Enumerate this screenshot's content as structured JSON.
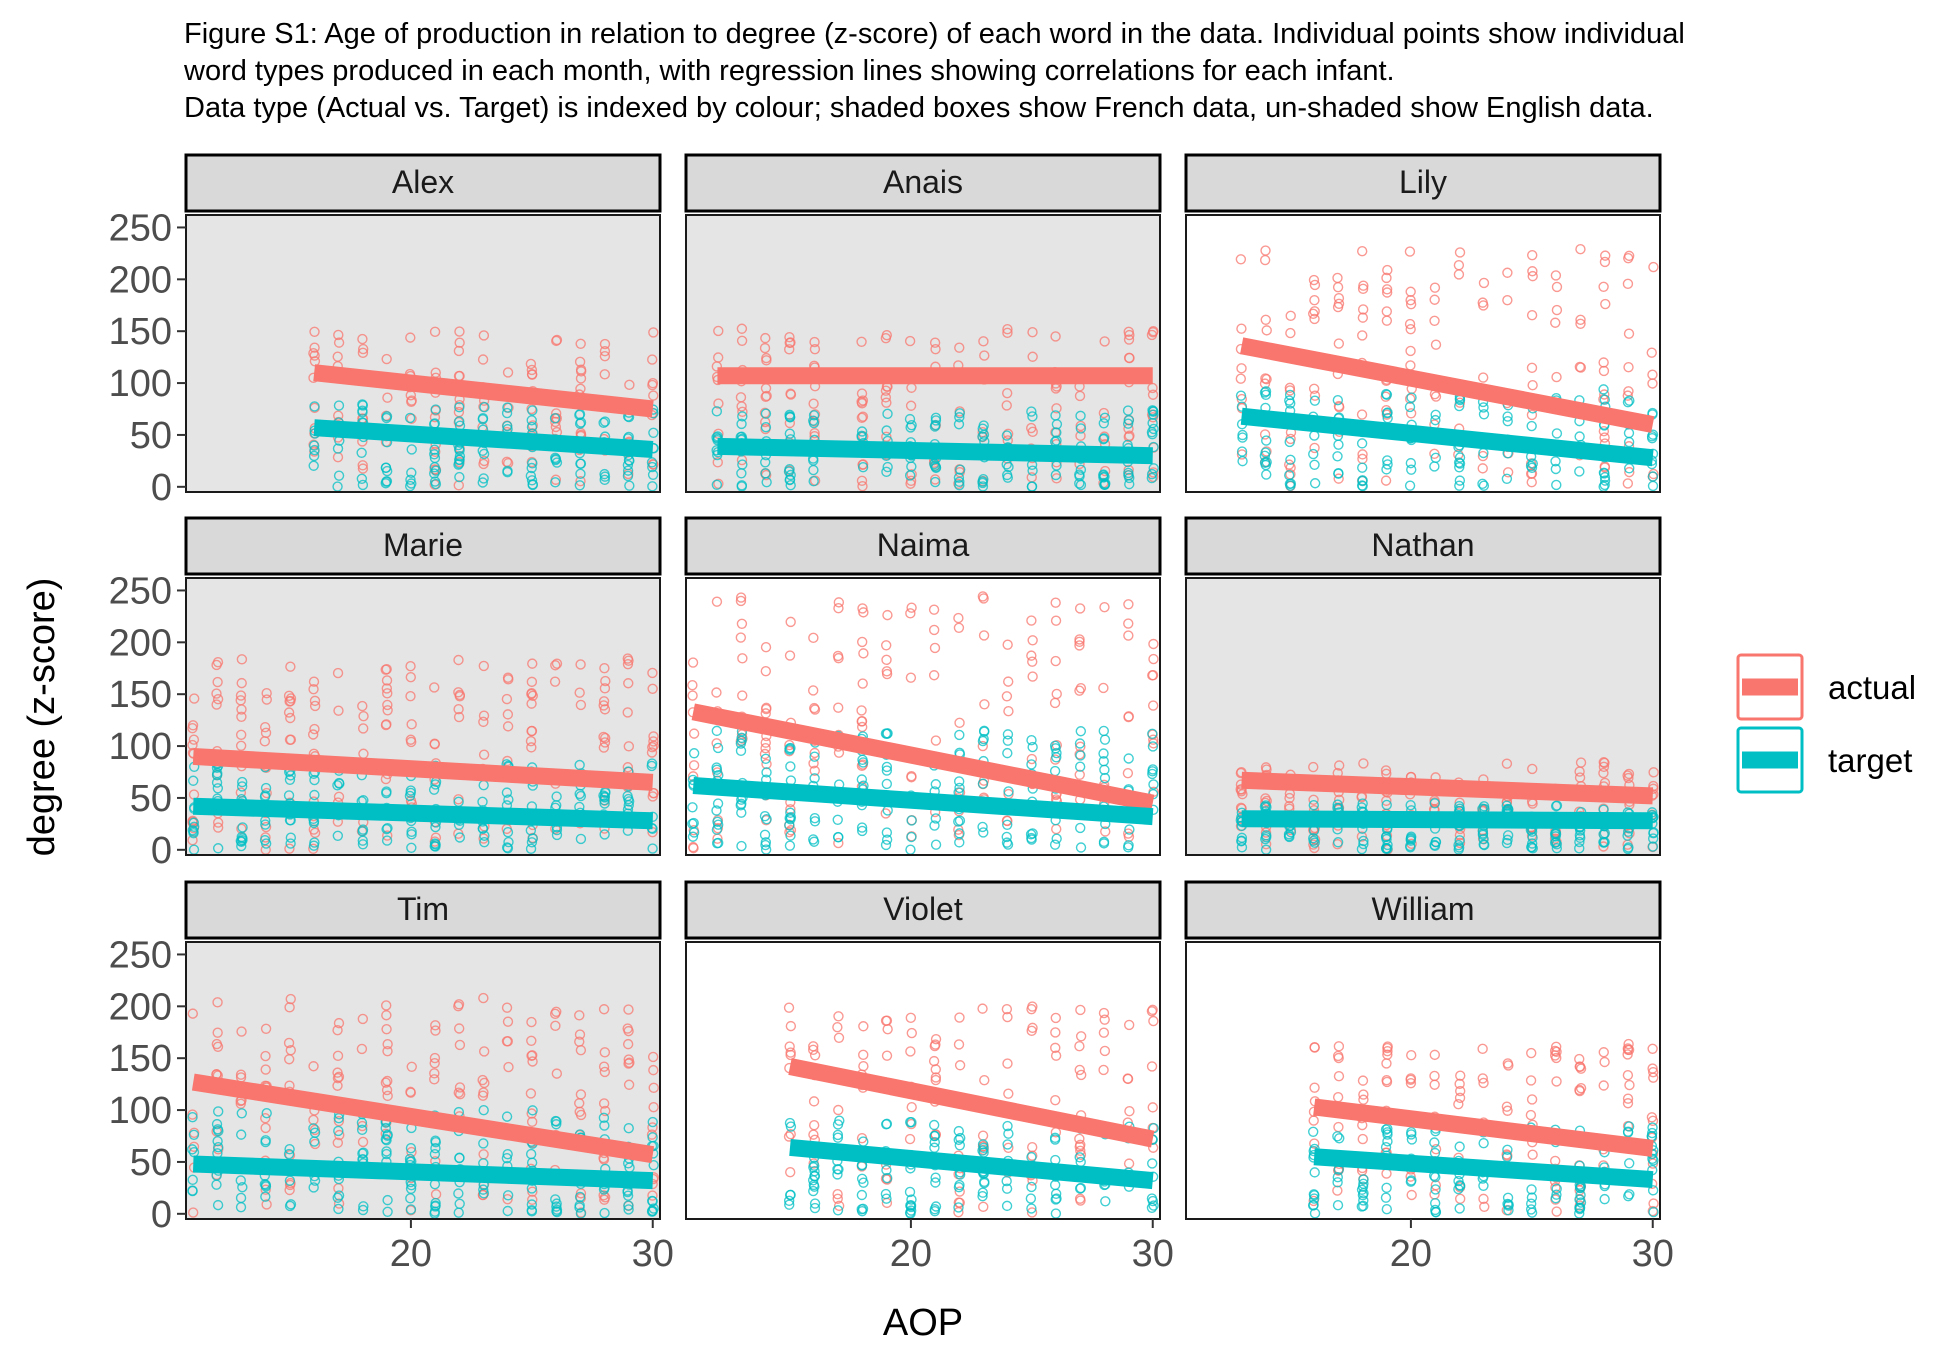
{
  "caption": {
    "lines": [
      "Figure S1: Age of production in relation to degree (z-score) of each word in the data. Individual points show individual",
      "word types produced in each month, with regression lines showing correlations for each infant.",
      "Data type (Actual vs. Target) is indexed by colour; shaded boxes show French data, un-shaded show English data."
    ]
  },
  "colors": {
    "actual": "#F8766D",
    "target": "#00BFC4",
    "french_panel_bg": "#E5E5E5",
    "english_panel_bg": "#FFFFFF",
    "strip_bg": "#D9D9D9"
  },
  "chart_data": {
    "type": "scatter",
    "facet_layout": "3x3",
    "xlabel": "AOP",
    "ylabel": "degree (z-score)",
    "xlim": [
      10.7,
      30.3
    ],
    "ylim": [
      -5,
      262
    ],
    "x_ticks": [
      20,
      30
    ],
    "y_ticks": [
      0,
      50,
      100,
      150,
      200,
      250
    ],
    "grid": false,
    "legend": {
      "position": "right",
      "entries": [
        {
          "name": "actual",
          "color": "#F8766D"
        },
        {
          "name": "target",
          "color": "#00BFC4"
        }
      ]
    },
    "panels": [
      {
        "name": "Alex",
        "language": "French",
        "months": [
          16,
          17,
          18,
          19,
          20,
          21,
          22,
          23,
          24,
          25,
          26,
          27,
          28,
          29,
          30
        ],
        "actual": {
          "range": [
            0,
            150
          ],
          "line": [
            [
              16,
              110
            ],
            [
              30,
              75
            ]
          ]
        },
        "target": {
          "range": [
            0,
            80
          ],
          "line": [
            [
              16,
              57
            ],
            [
              30,
              36
            ]
          ]
        }
      },
      {
        "name": "Anais",
        "language": "French",
        "months": [
          12,
          13,
          14,
          15,
          16,
          18,
          19,
          20,
          21,
          22,
          23,
          24,
          25,
          26,
          27,
          28,
          29,
          30
        ],
        "actual": {
          "range": [
            0,
            155
          ],
          "line": [
            [
              12,
              107
            ],
            [
              30,
              107
            ]
          ]
        },
        "target": {
          "range": [
            0,
            75
          ],
          "line": [
            [
              12,
              39
            ],
            [
              30,
              30
            ]
          ]
        }
      },
      {
        "name": "Lily",
        "language": "English",
        "months": [
          13,
          14,
          15,
          16,
          17,
          18,
          19,
          20,
          21,
          22,
          23,
          24,
          25,
          26,
          27,
          28,
          29,
          30
        ],
        "actual": {
          "range": [
            0,
            230
          ],
          "line": [
            [
              13,
              136
            ],
            [
              30,
              60
            ]
          ]
        },
        "target": {
          "range": [
            0,
            95
          ],
          "line": [
            [
              13,
              68
            ],
            [
              30,
              28
            ]
          ]
        }
      },
      {
        "name": "Marie",
        "language": "French",
        "months": [
          11,
          12,
          13,
          14,
          15,
          16,
          17,
          18,
          19,
          20,
          21,
          22,
          23,
          24,
          25,
          26,
          27,
          28,
          29,
          30
        ],
        "actual": {
          "range": [
            0,
            185
          ],
          "line": [
            [
              11,
              90
            ],
            [
              30,
              65
            ]
          ]
        },
        "target": {
          "range": [
            0,
            85
          ],
          "line": [
            [
              11,
              42
            ],
            [
              30,
              28
            ]
          ]
        }
      },
      {
        "name": "Naima",
        "language": "English",
        "months": [
          11,
          12,
          13,
          14,
          15,
          16,
          17,
          18,
          19,
          20,
          21,
          22,
          23,
          24,
          25,
          26,
          27,
          28,
          29,
          30
        ],
        "actual": {
          "range": [
            0,
            245
          ],
          "line": [
            [
              11,
              133
            ],
            [
              30,
              45
            ]
          ]
        },
        "target": {
          "range": [
            0,
            115
          ],
          "line": [
            [
              11,
              62
            ],
            [
              30,
              32
            ]
          ]
        }
      },
      {
        "name": "Nathan",
        "language": "French",
        "months": [
          13,
          14,
          15,
          16,
          17,
          18,
          19,
          20,
          21,
          22,
          23,
          24,
          25,
          26,
          27,
          28,
          29,
          30
        ],
        "actual": {
          "range": [
            0,
            85
          ],
          "line": [
            [
              13,
              67
            ],
            [
              30,
              52
            ]
          ]
        },
        "target": {
          "range": [
            0,
            45
          ],
          "line": [
            [
              13,
              30
            ],
            [
              30,
              28
            ]
          ]
        }
      },
      {
        "name": "Tim",
        "language": "French",
        "months": [
          11,
          12,
          13,
          14,
          15,
          16,
          17,
          18,
          19,
          20,
          21,
          22,
          23,
          24,
          25,
          26,
          27,
          28,
          29,
          30
        ],
        "actual": {
          "range": [
            0,
            210
          ],
          "line": [
            [
              11,
              127
            ],
            [
              30,
              57
            ]
          ]
        },
        "target": {
          "range": [
            0,
            100
          ],
          "line": [
            [
              11,
              48
            ],
            [
              30,
              32
            ]
          ]
        }
      },
      {
        "name": "Violet",
        "language": "English",
        "months": [
          15,
          16,
          17,
          18,
          19,
          20,
          21,
          22,
          23,
          24,
          25,
          26,
          27,
          28,
          29,
          30
        ],
        "actual": {
          "range": [
            0,
            200
          ],
          "line": [
            [
              15,
              142
            ],
            [
              30,
              72
            ]
          ]
        },
        "target": {
          "range": [
            0,
            90
          ],
          "line": [
            [
              15,
              64
            ],
            [
              30,
              32
            ]
          ]
        }
      },
      {
        "name": "William",
        "language": "English",
        "months": [
          16,
          17,
          18,
          19,
          20,
          21,
          22,
          23,
          24,
          25,
          26,
          27,
          28,
          29,
          30
        ],
        "actual": {
          "range": [
            0,
            165
          ],
          "line": [
            [
              16,
              103
            ],
            [
              30,
              63
            ]
          ]
        },
        "target": {
          "range": [
            0,
            85
          ],
          "line": [
            [
              16,
              55
            ],
            [
              30,
              33
            ]
          ]
        }
      }
    ]
  }
}
